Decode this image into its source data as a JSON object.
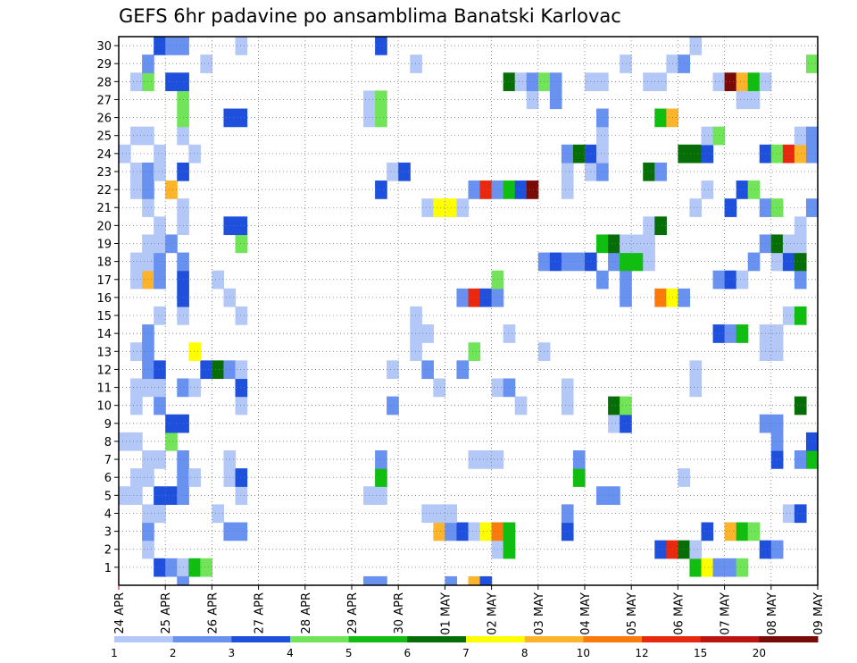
{
  "chart_data": {
    "type": "heatmap",
    "title": "GEFS 6hr padavine po ansamblima Banatski Karlovac",
    "xlabel": "",
    "ylabel": "",
    "x_tick_labels": [
      "24 APR",
      "25 APR",
      "26 APR",
      "27 APR",
      "28 APR",
      "29 APR",
      "30 APR",
      "01 MAY",
      "02 MAY",
      "03 MAY",
      "04 MAY",
      "05 MAY",
      "06 MAY",
      "07 MAY",
      "08 MAY",
      "09 MAY"
    ],
    "y_tick_labels": [
      "1",
      "2",
      "3",
      "4",
      "5",
      "6",
      "7",
      "8",
      "9",
      "10",
      "11",
      "12",
      "13",
      "14",
      "15",
      "16",
      "17",
      "18",
      "19",
      "20",
      "21",
      "22",
      "23",
      "24",
      "25",
      "26",
      "27",
      "28",
      "29",
      "30"
    ],
    "x_range_steps": [
      0,
      60
    ],
    "y_range_members": [
      0,
      30
    ],
    "steps_per_day": 4,
    "grid": true,
    "legend": {
      "placement": "bottom",
      "labels": [
        "1",
        "2",
        "3",
        "4",
        "5",
        "6",
        "7",
        "8",
        "10",
        "12",
        "15",
        "20"
      ],
      "colors": [
        "#b4c8f8",
        "#6991ef",
        "#1e50dc",
        "#72e45a",
        "#10bd10",
        "#076d07",
        "#ffff00",
        "#fbb42c",
        "#fa7b0c",
        "#e8280f",
        "#bc1410",
        "#780a08"
      ]
    },
    "colors_by_class": [
      "#b4c8f8",
      "#6991ef",
      "#1e50dc",
      "#72e45a",
      "#10bd10",
      "#076d07",
      "#ffff00",
      "#fbb42c",
      "#fa7b0c",
      "#e8280f",
      "#bc1410",
      "#780a08"
    ],
    "members": {
      "1": [
        [
          3,
          3
        ],
        [
          4,
          2
        ],
        [
          5,
          1
        ],
        [
          6,
          5
        ],
        [
          7,
          4
        ],
        [
          49,
          5
        ],
        [
          50,
          7
        ],
        [
          51,
          2
        ],
        [
          52,
          2
        ],
        [
          53,
          4
        ]
      ],
      "2": [
        [
          2,
          1
        ],
        [
          32,
          1
        ],
        [
          33,
          5
        ],
        [
          46,
          3
        ],
        [
          47,
          10
        ],
        [
          48,
          6
        ],
        [
          49,
          1
        ],
        [
          55,
          3
        ],
        [
          56,
          2
        ]
      ],
      "3": [
        [
          2,
          2
        ],
        [
          9,
          2
        ],
        [
          10,
          2
        ],
        [
          27,
          8
        ],
        [
          28,
          2
        ],
        [
          29,
          3
        ],
        [
          30,
          1
        ],
        [
          31,
          7
        ],
        [
          32,
          9
        ],
        [
          33,
          5
        ],
        [
          38,
          3
        ],
        [
          50,
          3
        ],
        [
          52,
          8
        ],
        [
          53,
          5
        ],
        [
          54,
          4
        ]
      ],
      "4": [
        [
          2,
          1
        ],
        [
          3,
          1
        ],
        [
          8,
          1
        ],
        [
          26,
          1
        ],
        [
          27,
          1
        ],
        [
          28,
          1
        ],
        [
          38,
          2
        ],
        [
          57,
          1
        ],
        [
          58,
          3
        ]
      ],
      "5": [
        [
          0,
          1
        ],
        [
          1,
          1
        ],
        [
          3,
          3
        ],
        [
          4,
          3
        ],
        [
          5,
          2
        ],
        [
          10,
          1
        ],
        [
          21,
          1
        ],
        [
          22,
          1
        ],
        [
          41,
          2
        ],
        [
          42,
          2
        ]
      ],
      "6": [
        [
          1,
          1
        ],
        [
          2,
          1
        ],
        [
          5,
          2
        ],
        [
          6,
          1
        ],
        [
          9,
          1
        ],
        [
          10,
          3
        ],
        [
          22,
          5
        ],
        [
          39,
          5
        ],
        [
          48,
          1
        ]
      ],
      "7": [
        [
          2,
          1
        ],
        [
          3,
          1
        ],
        [
          5,
          2
        ],
        [
          9,
          1
        ],
        [
          22,
          2
        ],
        [
          30,
          1
        ],
        [
          31,
          1
        ],
        [
          32,
          1
        ],
        [
          39,
          2
        ],
        [
          56,
          3
        ],
        [
          58,
          2
        ],
        [
          59,
          5
        ]
      ],
      "8": [
        [
          0,
          1
        ],
        [
          1,
          1
        ],
        [
          4,
          4
        ],
        [
          56,
          2
        ],
        [
          59,
          3
        ]
      ],
      "9": [
        [
          4,
          3
        ],
        [
          5,
          3
        ],
        [
          42,
          1
        ],
        [
          43,
          3
        ],
        [
          55,
          2
        ],
        [
          56,
          2
        ]
      ],
      "10": [
        [
          1,
          1
        ],
        [
          3,
          2
        ],
        [
          10,
          1
        ],
        [
          23,
          2
        ],
        [
          34,
          1
        ],
        [
          38,
          1
        ],
        [
          42,
          6
        ],
        [
          43,
          4
        ],
        [
          58,
          6
        ]
      ],
      "11": [
        [
          1,
          1
        ],
        [
          2,
          1
        ],
        [
          3,
          1
        ],
        [
          5,
          2
        ],
        [
          6,
          1
        ],
        [
          10,
          3
        ],
        [
          27,
          1
        ],
        [
          32,
          1
        ],
        [
          33,
          2
        ],
        [
          38,
          1
        ],
        [
          49,
          1
        ]
      ],
      "12": [
        [
          2,
          2
        ],
        [
          3,
          3
        ],
        [
          7,
          3
        ],
        [
          8,
          6
        ],
        [
          9,
          2
        ],
        [
          10,
          1
        ],
        [
          23,
          1
        ],
        [
          26,
          2
        ],
        [
          29,
          2
        ],
        [
          49,
          1
        ]
      ],
      "13": [
        [
          1,
          1
        ],
        [
          2,
          2
        ],
        [
          6,
          7
        ],
        [
          25,
          1
        ],
        [
          30,
          4
        ],
        [
          36,
          1
        ],
        [
          55,
          1
        ],
        [
          56,
          1
        ]
      ],
      "14": [
        [
          2,
          2
        ],
        [
          25,
          1
        ],
        [
          26,
          1
        ],
        [
          33,
          1
        ],
        [
          51,
          3
        ],
        [
          52,
          2
        ],
        [
          53,
          5
        ],
        [
          55,
          1
        ],
        [
          56,
          1
        ]
      ],
      "15": [
        [
          3,
          1
        ],
        [
          5,
          1
        ],
        [
          10,
          1
        ],
        [
          25,
          1
        ],
        [
          57,
          1
        ],
        [
          58,
          5
        ]
      ],
      "16": [
        [
          5,
          3
        ],
        [
          9,
          1
        ],
        [
          29,
          2
        ],
        [
          30,
          10
        ],
        [
          31,
          3
        ],
        [
          32,
          2
        ],
        [
          43,
          2
        ],
        [
          46,
          9
        ],
        [
          47,
          7
        ],
        [
          48,
          2
        ]
      ],
      "17": [
        [
          1,
          1
        ],
        [
          2,
          8
        ],
        [
          3,
          2
        ],
        [
          5,
          3
        ],
        [
          8,
          1
        ],
        [
          32,
          4
        ],
        [
          41,
          2
        ],
        [
          43,
          2
        ],
        [
          51,
          2
        ],
        [
          52,
          3
        ],
        [
          53,
          1
        ],
        [
          58,
          2
        ]
      ],
      "18": [
        [
          1,
          1
        ],
        [
          2,
          1
        ],
        [
          3,
          2
        ],
        [
          5,
          2
        ],
        [
          36,
          2
        ],
        [
          37,
          3
        ],
        [
          38,
          2
        ],
        [
          39,
          2
        ],
        [
          40,
          3
        ],
        [
          42,
          2
        ],
        [
          43,
          5
        ],
        [
          44,
          5
        ],
        [
          45,
          1
        ],
        [
          54,
          2
        ],
        [
          56,
          1
        ],
        [
          57,
          3
        ],
        [
          58,
          6
        ]
      ],
      "19": [
        [
          2,
          1
        ],
        [
          3,
          1
        ],
        [
          4,
          2
        ],
        [
          10,
          4
        ],
        [
          41,
          5
        ],
        [
          42,
          6
        ],
        [
          43,
          1
        ],
        [
          44,
          1
        ],
        [
          45,
          1
        ],
        [
          55,
          2
        ],
        [
          56,
          6
        ],
        [
          57,
          1
        ],
        [
          58,
          1
        ]
      ],
      "20": [
        [
          3,
          1
        ],
        [
          5,
          1
        ],
        [
          9,
          3
        ],
        [
          10,
          3
        ],
        [
          45,
          1
        ],
        [
          46,
          6
        ],
        [
          58,
          1
        ]
      ],
      "21": [
        [
          2,
          1
        ],
        [
          5,
          1
        ],
        [
          26,
          1
        ],
        [
          27,
          7
        ],
        [
          28,
          7
        ],
        [
          29,
          1
        ],
        [
          49,
          1
        ],
        [
          52,
          3
        ],
        [
          55,
          2
        ],
        [
          56,
          4
        ],
        [
          59,
          2
        ]
      ],
      "22": [
        [
          1,
          1
        ],
        [
          2,
          2
        ],
        [
          4,
          8
        ],
        [
          22,
          3
        ],
        [
          30,
          2
        ],
        [
          31,
          10
        ],
        [
          32,
          2
        ],
        [
          33,
          5
        ],
        [
          34,
          3
        ],
        [
          35,
          12
        ],
        [
          38,
          1
        ],
        [
          50,
          1
        ],
        [
          53,
          3
        ],
        [
          54,
          4
        ]
      ],
      "23": [
        [
          1,
          1
        ],
        [
          2,
          2
        ],
        [
          3,
          1
        ],
        [
          5,
          3
        ],
        [
          23,
          1
        ],
        [
          24,
          3
        ],
        [
          38,
          1
        ],
        [
          40,
          1
        ],
        [
          41,
          2
        ],
        [
          45,
          6
        ],
        [
          46,
          2
        ]
      ],
      "24": [
        [
          0,
          1
        ],
        [
          3,
          1
        ],
        [
          6,
          1
        ],
        [
          38,
          2
        ],
        [
          39,
          6
        ],
        [
          40,
          3
        ],
        [
          41,
          1
        ],
        [
          48,
          6
        ],
        [
          49,
          6
        ],
        [
          50,
          3
        ],
        [
          55,
          3
        ],
        [
          56,
          4
        ],
        [
          57,
          10
        ],
        [
          58,
          8
        ],
        [
          59,
          2
        ]
      ],
      "25": [
        [
          1,
          1
        ],
        [
          2,
          1
        ],
        [
          5,
          1
        ],
        [
          41,
          1
        ],
        [
          50,
          1
        ],
        [
          51,
          4
        ],
        [
          58,
          1
        ],
        [
          59,
          2
        ]
      ],
      "26": [
        [
          5,
          4
        ],
        [
          9,
          3
        ],
        [
          10,
          3
        ],
        [
          21,
          1
        ],
        [
          22,
          4
        ],
        [
          41,
          2
        ],
        [
          46,
          5
        ],
        [
          47,
          8
        ]
      ],
      "27": [
        [
          5,
          4
        ],
        [
          21,
          1
        ],
        [
          22,
          4
        ],
        [
          35,
          1
        ],
        [
          37,
          2
        ],
        [
          53,
          1
        ],
        [
          54,
          1
        ]
      ],
      "28": [
        [
          1,
          1
        ],
        [
          2,
          4
        ],
        [
          4,
          3
        ],
        [
          5,
          3
        ],
        [
          33,
          6
        ],
        [
          34,
          1
        ],
        [
          35,
          2
        ],
        [
          36,
          4
        ],
        [
          37,
          2
        ],
        [
          40,
          1
        ],
        [
          41,
          1
        ],
        [
          45,
          1
        ],
        [
          46,
          1
        ],
        [
          51,
          1
        ],
        [
          52,
          12
        ],
        [
          53,
          8
        ],
        [
          54,
          5
        ],
        [
          55,
          1
        ]
      ],
      "29": [
        [
          2,
          2
        ],
        [
          7,
          1
        ],
        [
          25,
          1
        ],
        [
          43,
          1
        ],
        [
          47,
          1
        ],
        [
          48,
          2
        ],
        [
          59,
          4
        ]
      ],
      "30": [
        [
          3,
          3
        ],
        [
          4,
          2
        ],
        [
          5,
          2
        ],
        [
          10,
          1
        ],
        [
          22,
          3
        ],
        [
          49,
          1
        ]
      ]
    },
    "beyond_last_row": [
      [
        5,
        2
      ],
      [
        21,
        2
      ],
      [
        22,
        2
      ],
      [
        28,
        2
      ],
      [
        30,
        8
      ],
      [
        31,
        3
      ]
    ]
  }
}
